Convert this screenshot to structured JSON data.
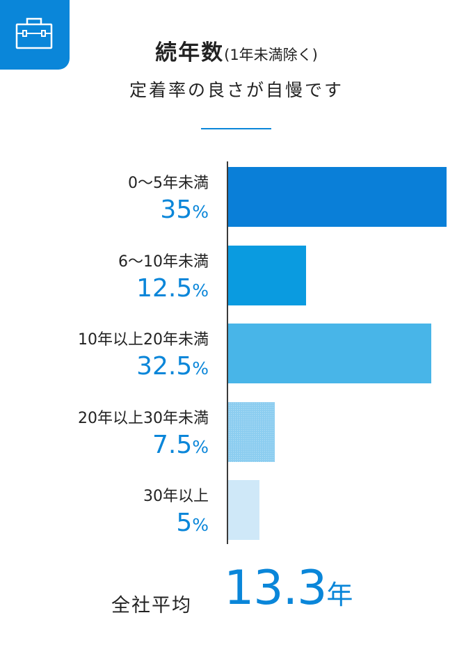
{
  "header": {
    "icon": "briefcase-icon",
    "title": "続年数",
    "title_note": "(1年未満除く)",
    "subtitle": "定着率の良さが自慢です"
  },
  "colors": {
    "accent": "#0a86d9",
    "badge": "#0a86d9",
    "bars": [
      "#0a7fd8",
      "#0a9be0",
      "#48b5e8",
      "#8ccdf0",
      "#cfe8f8"
    ]
  },
  "chart_data": {
    "type": "bar",
    "orientation": "horizontal",
    "categories": [
      "0〜5年未満",
      "6〜10年未満",
      "10年以上20年未満",
      "20年以上30年未満",
      "30年以上"
    ],
    "values": [
      35,
      12.5,
      32.5,
      7.5,
      5
    ],
    "value_labels": [
      "35",
      "12.5",
      "32.5",
      "7.5",
      "5"
    ],
    "unit": "%",
    "xlim": [
      0,
      35
    ],
    "grid": false,
    "legend": "none"
  },
  "summary": {
    "label": "全社平均",
    "value": "13.3",
    "unit": "年"
  }
}
